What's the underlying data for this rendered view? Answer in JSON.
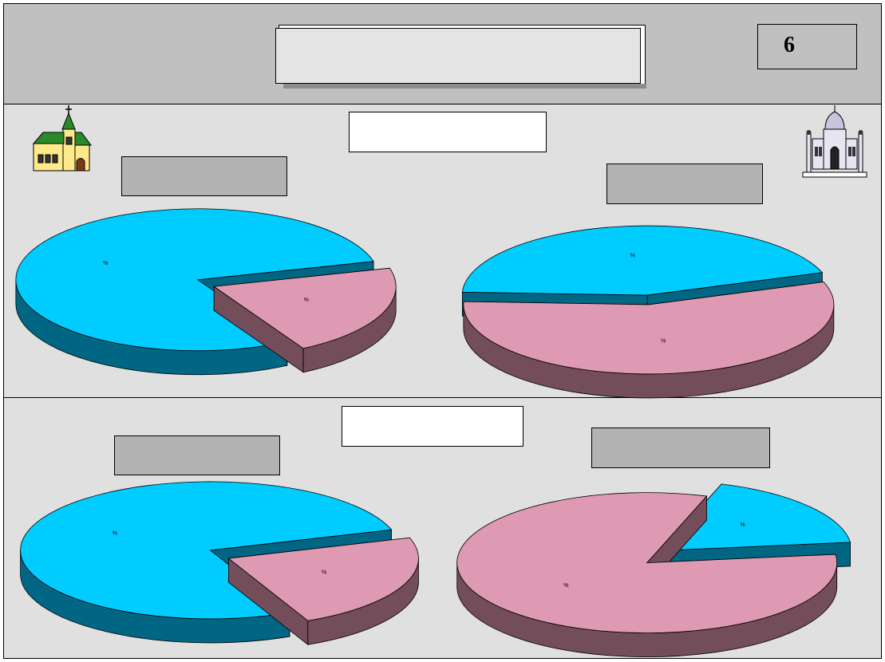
{
  "header": {
    "title": "",
    "page_number": "6"
  },
  "top_section": {
    "title": ""
  },
  "bottom_section": {
    "title": ""
  },
  "colors": {
    "series_a": "#00ccff",
    "series_a_side": "#006683",
    "series_b": "#de9ab2",
    "series_b_side": "#734d5a"
  },
  "icons": {
    "left": "church-icon",
    "right": "mosque-icon"
  },
  "chart_data": [
    {
      "type": "pie",
      "position": "top-left",
      "title": "",
      "series": [
        {
          "values": [
            79,
            21
          ]
        }
      ],
      "data_labels": [
        "%",
        "%"
      ]
    },
    {
      "type": "pie",
      "position": "top-right",
      "title": "",
      "series": [
        {
          "values": [
            44,
            56
          ]
        }
      ],
      "data_labels": [
        "%",
        "%"
      ]
    },
    {
      "type": "pie",
      "position": "bottom-left",
      "title": "",
      "series": [
        {
          "values": [
            77,
            23
          ]
        }
      ],
      "data_labels": [
        "%",
        "%"
      ]
    },
    {
      "type": "pie",
      "position": "bottom-right",
      "title": "",
      "series": [
        {
          "values": [
            18,
            82
          ]
        }
      ],
      "data_labels": [
        "%",
        "%"
      ]
    }
  ]
}
